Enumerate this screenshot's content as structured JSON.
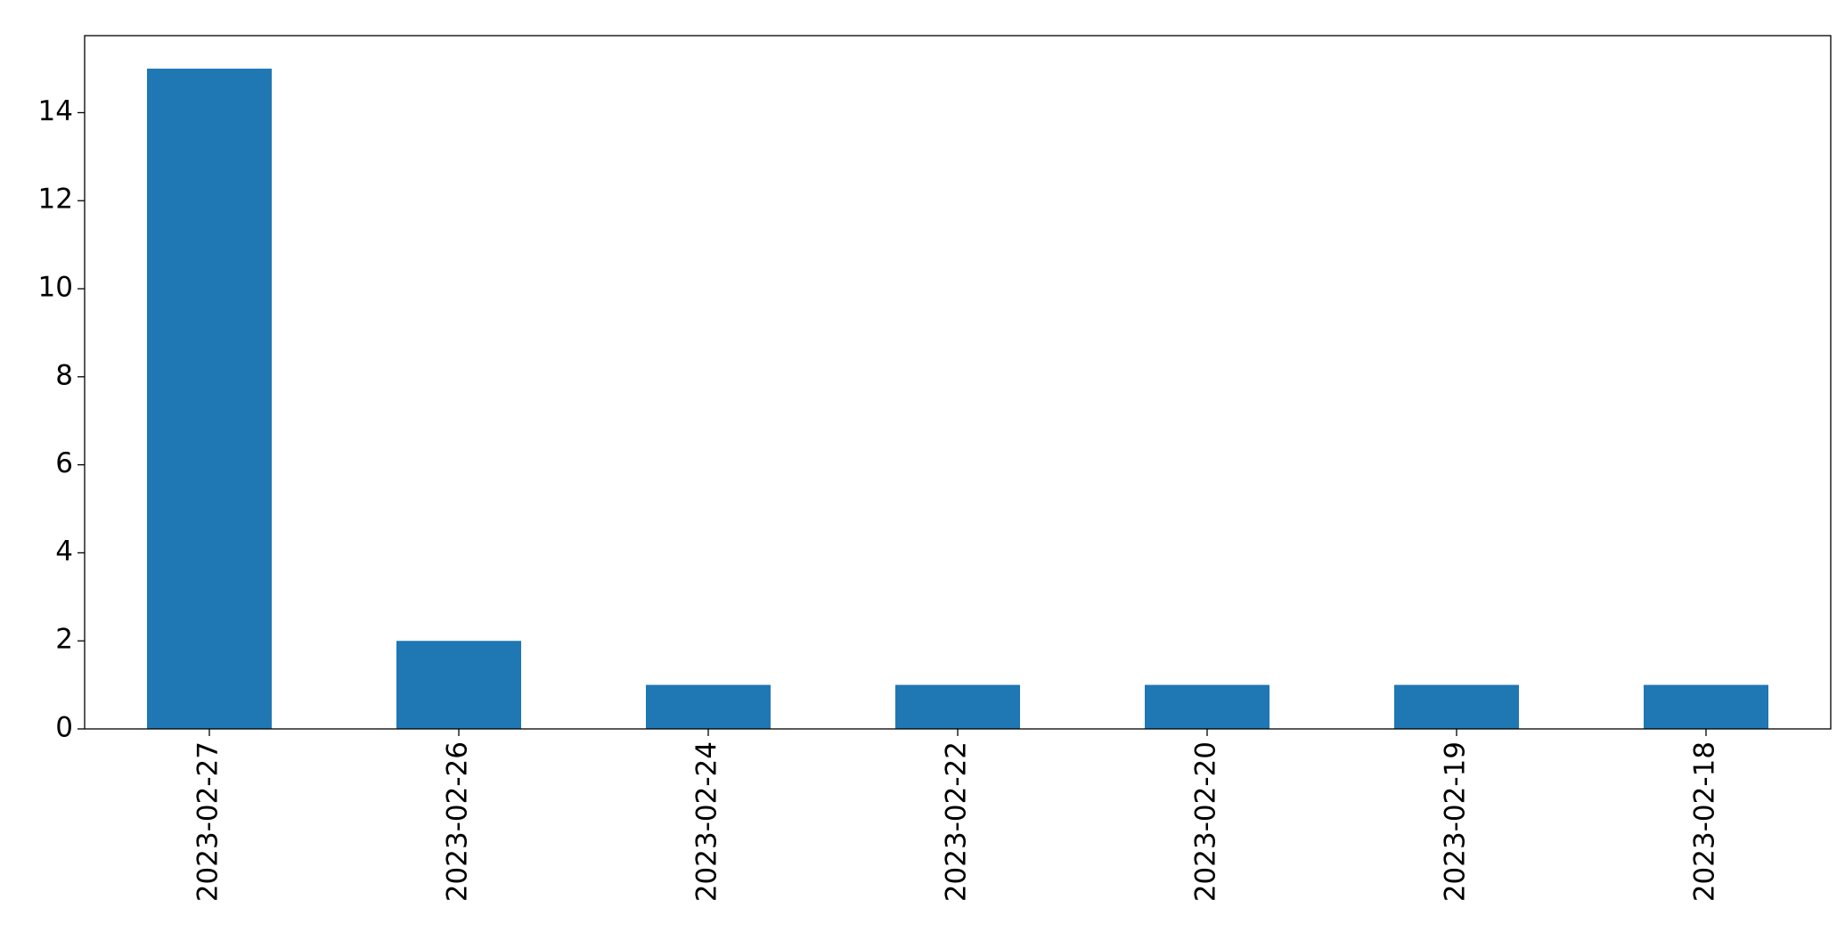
{
  "chart_data": {
    "type": "bar",
    "categories": [
      "2023-02-27",
      "2023-02-26",
      "2023-02-24",
      "2023-02-22",
      "2023-02-20",
      "2023-02-19",
      "2023-02-18"
    ],
    "values": [
      15,
      2,
      1,
      1,
      1,
      1,
      1
    ],
    "color": "#1f77b4",
    "ylim": [
      0,
      15.75
    ],
    "yticks": [
      0,
      2,
      4,
      6,
      8,
      10,
      12,
      14
    ],
    "grid": false
  }
}
